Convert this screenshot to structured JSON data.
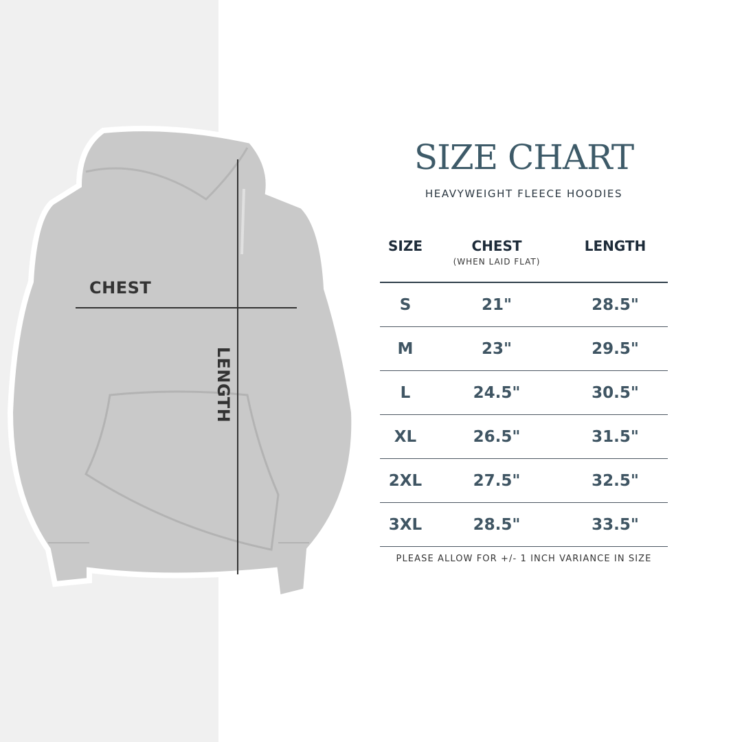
{
  "title": "SIZE CHART",
  "subtitle": "HEAVYWEIGHT FLEECE HOODIES",
  "image_labels": {
    "chest": "CHEST",
    "length": "LENGTH"
  },
  "table": {
    "headers": [
      {
        "label": "SIZE",
        "sub": ""
      },
      {
        "label": "CHEST",
        "sub": "(WHEN LAID FLAT)"
      },
      {
        "label": "LENGTH",
        "sub": ""
      }
    ],
    "rows": [
      [
        "S",
        "21\"",
        "28.5\""
      ],
      [
        "M",
        "23\"",
        "29.5\""
      ],
      [
        "L",
        "24.5\"",
        "30.5\""
      ],
      [
        "XL",
        "26.5\"",
        "31.5\""
      ],
      [
        "2XL",
        "27.5\"",
        "32.5\""
      ],
      [
        "3XL",
        "28.5\"",
        "33.5\""
      ]
    ]
  },
  "note": "PLEASE ALLOW FOR +/- 1 INCH VARIANCE IN SIZE",
  "colors": {
    "title": "#3d5a68",
    "values": "#3f5563",
    "headers": "#1c2a38",
    "panel": "#f0f0f0",
    "hoodie": "#c9c9c9"
  }
}
